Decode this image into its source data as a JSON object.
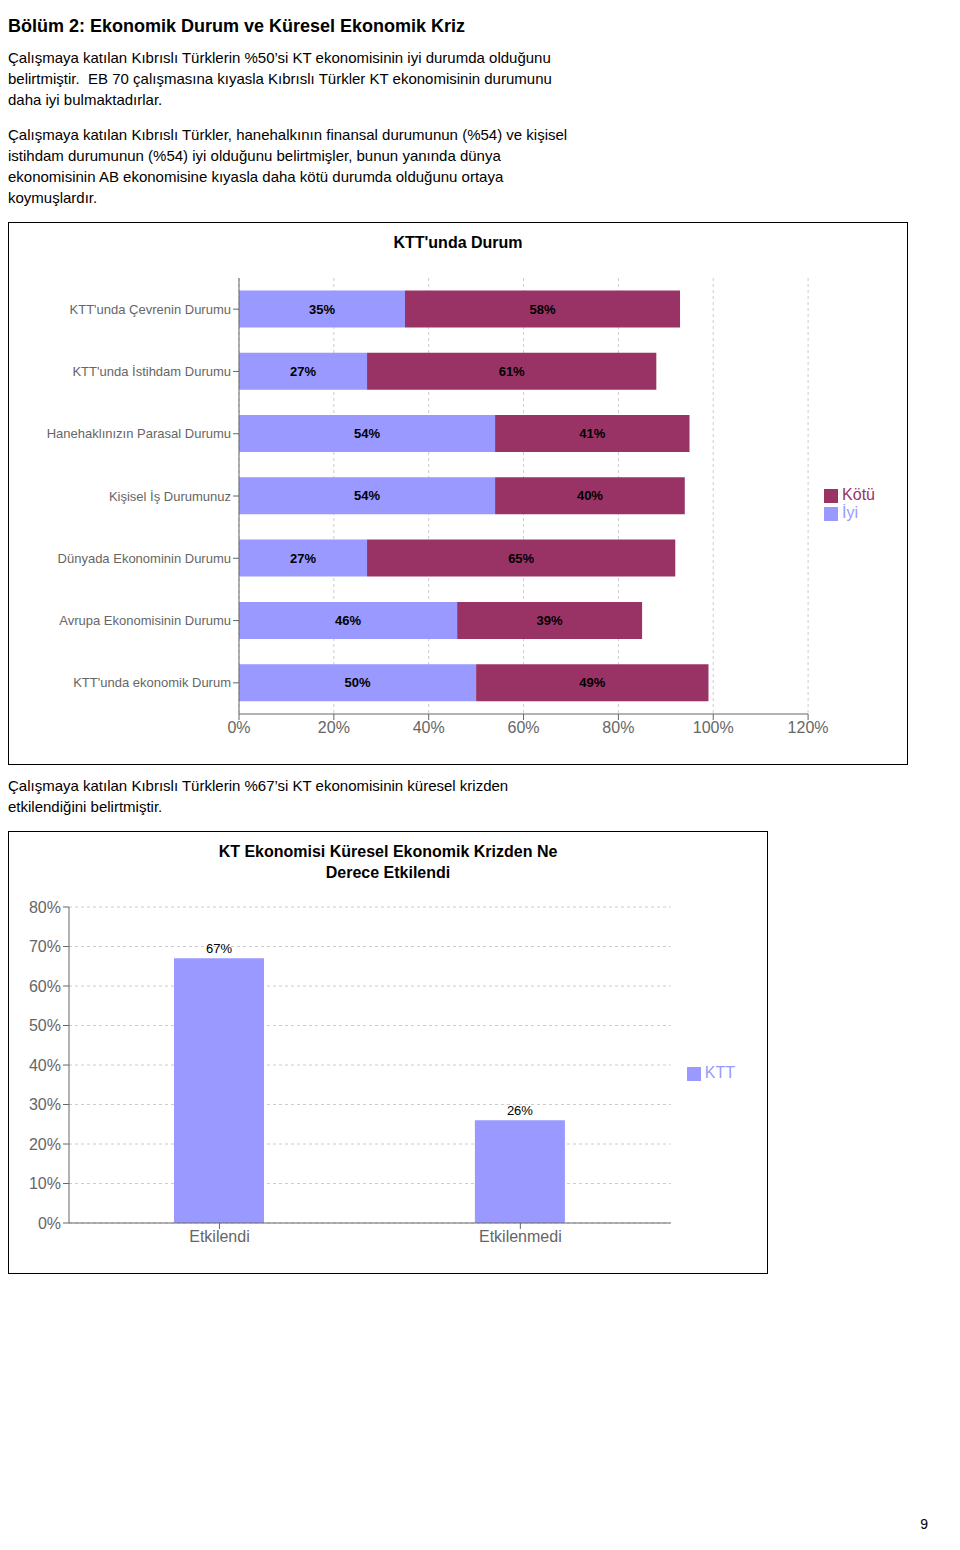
{
  "title": "Bölüm 2: Ekonomik Durum ve Küresel Ekonomik Kriz",
  "annotations": [
    [
      "Çalışmaya katılan Kıbrıslı Türklerin %50’si KT ekonomisinin iyi durumda olduğunu",
      "belirtmiştir.  EB 70 çalışmasına kıyasla Kıbrıslı Türkler KT ekonomisinin durumunu",
      "daha iyi bulmaktadırlar."
    ],
    [
      "Çalışmaya katılan Kıbrıslı Türkler, hanehalkının finansal durumunun (%54) ve kişisel",
      "istihdam durumunun (%54) iyi olduğunu belirtmişler, bunun yanında dünya",
      "ekonomisinin AB ekonomisine kıyasla daha kötü durumda olduğunu ortaya",
      "koymuşlardır."
    ],
    [
      "Çalışmaya katılan Kıbrıslı Türklerin %67’si KT ekonomisinin küresel krizden",
      "etkilendiğini belirtmiştir."
    ]
  ],
  "page_number": "9",
  "chart_data": [
    {
      "type": "bar",
      "title": "KTT'unda Durum",
      "orientation": "horizontal",
      "stacked": true,
      "categories": [
        "KTT'unda Çevrenin Durumu",
        "KTT'unda İstihdam Durumu",
        "Hanehaklınızın Parasal Durumu",
        "Kişisel İş Durumunuz",
        "Dünyada Ekonominin Durumu",
        "Avrupa Ekonomisinin Durumu",
        "KTT'unda ekonomik Durum"
      ],
      "series": [
        {
          "name": "İyi",
          "color": "#9999ff",
          "values": [
            35,
            27,
            54,
            54,
            27,
            46,
            50
          ],
          "value_labels": [
            "35%",
            "27%",
            "54%",
            "54%",
            "27%",
            "46%",
            "50%"
          ]
        },
        {
          "name": "Kötü",
          "color": "#993366",
          "values": [
            58,
            61,
            41,
            40,
            65,
            39,
            49
          ],
          "value_labels": [
            "58%",
            "61%",
            "41%",
            "40%",
            "65%",
            "39%",
            "49%"
          ]
        }
      ],
      "xlim": [
        0,
        120
      ],
      "xticks": [
        {
          "value": 0,
          "label": "0%"
        },
        {
          "value": 20,
          "label": "20%"
        },
        {
          "value": 40,
          "label": "40%"
        },
        {
          "value": 60,
          "label": "60%"
        },
        {
          "value": 80,
          "label": "80%"
        },
        {
          "value": 100,
          "label": "100%"
        },
        {
          "value": 120,
          "label": "120%"
        }
      ],
      "grid": true,
      "legend": "right",
      "data_labels": true
    },
    {
      "type": "bar",
      "title": "KT Ekonomisi Küresel Ekonomik Krizden Ne\nDerece Etkilendi",
      "categories": [
        "Etkilendi",
        "Etkilenmedi"
      ],
      "series": [
        {
          "name": "KTT",
          "color": "#9999ff",
          "values": [
            67,
            26
          ],
          "value_labels": [
            "67%",
            "26%"
          ]
        }
      ],
      "ylim": [
        0,
        80
      ],
      "yticks": [
        {
          "value": 0,
          "label": "0%"
        },
        {
          "value": 10,
          "label": "10%"
        },
        {
          "value": 20,
          "label": "20%"
        },
        {
          "value": 30,
          "label": "30%"
        },
        {
          "value": 40,
          "label": "40%"
        },
        {
          "value": 50,
          "label": "50%"
        },
        {
          "value": 60,
          "label": "60%"
        },
        {
          "value": 70,
          "label": "70%"
        },
        {
          "value": 80,
          "label": "80%"
        }
      ],
      "grid": true,
      "legend": "right",
      "data_labels": true
    }
  ]
}
